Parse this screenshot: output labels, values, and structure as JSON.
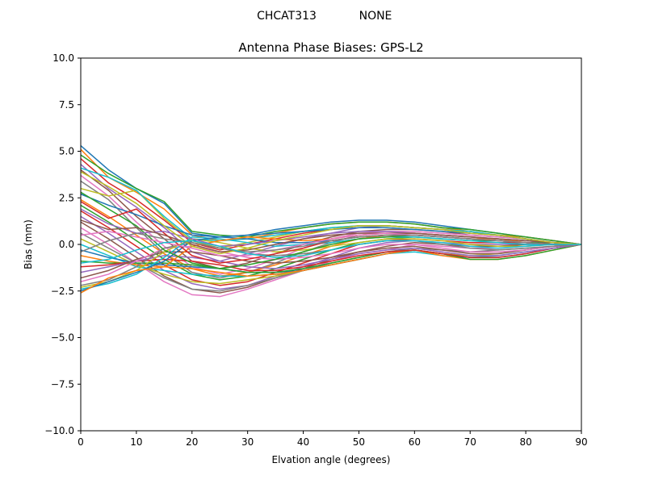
{
  "figure": {
    "suptitle_left": "CHCAT313",
    "suptitle_right": "NONE"
  },
  "chart_data": {
    "type": "line",
    "title": "Antenna Phase Biases: GPS-L2",
    "xlabel": "Elvation angle (degrees)",
    "ylabel": "Bias (mm)",
    "xlim": [
      0,
      90
    ],
    "ylim": [
      -10,
      10
    ],
    "xticks": [
      0,
      10,
      20,
      30,
      40,
      50,
      60,
      70,
      80,
      90
    ],
    "yticks": [
      -10.0,
      -7.5,
      -5.0,
      -2.5,
      0.0,
      2.5,
      5.0,
      7.5,
      10.0
    ],
    "xtick_labels": [
      "0",
      "10",
      "20",
      "30",
      "40",
      "50",
      "60",
      "70",
      "80",
      "90"
    ],
    "ytick_labels": [
      "−10.0",
      "−7.5",
      "−5.0",
      "−2.5",
      "0.0",
      "2.5",
      "5.0",
      "7.5",
      "10.0"
    ],
    "grid": false,
    "legend": "none",
    "x": [
      0,
      5,
      10,
      15,
      20,
      25,
      30,
      35,
      40,
      45,
      50,
      55,
      60,
      65,
      70,
      75,
      80,
      85,
      90
    ],
    "series": [
      {
        "color": "#1f77b4",
        "values": [
          5.3,
          4.0,
          3.0,
          2.2,
          0.6,
          0.4,
          0.5,
          0.8,
          1.0,
          1.2,
          1.3,
          1.3,
          1.2,
          1.0,
          0.8,
          0.6,
          0.4,
          0.2,
          0.0
        ]
      },
      {
        "color": "#ff7f0e",
        "values": [
          5.1,
          3.6,
          2.8,
          1.9,
          0.5,
          0.2,
          0.3,
          0.6,
          0.9,
          1.1,
          1.2,
          1.2,
          1.1,
          0.9,
          0.7,
          0.5,
          0.4,
          0.2,
          0.0
        ]
      },
      {
        "color": "#2ca02c",
        "values": [
          4.8,
          3.8,
          3.0,
          2.3,
          0.7,
          0.5,
          0.4,
          0.7,
          0.9,
          1.1,
          1.2,
          1.2,
          1.1,
          0.9,
          0.8,
          0.6,
          0.4,
          0.2,
          0.0
        ]
      },
      {
        "color": "#d62728",
        "values": [
          4.6,
          3.3,
          2.4,
          1.3,
          0.1,
          -0.3,
          0.0,
          0.3,
          0.6,
          0.8,
          1.0,
          1.0,
          0.9,
          0.8,
          0.6,
          0.5,
          0.3,
          0.1,
          0.0
        ]
      },
      {
        "color": "#9467bd",
        "values": [
          4.3,
          3.0,
          2.0,
          0.9,
          -0.4,
          -0.9,
          -0.5,
          -0.1,
          0.3,
          0.6,
          0.9,
          1.0,
          0.9,
          0.8,
          0.6,
          0.5,
          0.3,
          0.1,
          0.0
        ]
      },
      {
        "color": "#8c564b",
        "values": [
          4.0,
          2.9,
          1.5,
          0.3,
          -0.9,
          -1.3,
          -1.0,
          -0.5,
          0.0,
          0.4,
          0.7,
          0.8,
          0.8,
          0.7,
          0.5,
          0.4,
          0.3,
          0.1,
          0.0
        ]
      },
      {
        "color": "#e377c2",
        "values": [
          3.7,
          2.6,
          1.2,
          -0.1,
          -1.2,
          -1.6,
          -1.3,
          -0.8,
          -0.2,
          0.3,
          0.6,
          0.7,
          0.7,
          0.6,
          0.5,
          0.4,
          0.3,
          0.1,
          0.0
        ]
      },
      {
        "color": "#7f7f7f",
        "values": [
          3.4,
          2.4,
          0.9,
          -0.5,
          -1.5,
          -1.8,
          -1.5,
          -1.0,
          -0.4,
          0.1,
          0.5,
          0.6,
          0.6,
          0.5,
          0.4,
          0.3,
          0.2,
          0.1,
          0.0
        ]
      },
      {
        "color": "#bcbd22",
        "values": [
          3.0,
          2.6,
          2.9,
          1.4,
          0.2,
          -0.2,
          0.1,
          0.4,
          0.7,
          0.9,
          1.0,
          1.0,
          0.9,
          0.8,
          0.7,
          0.5,
          0.3,
          0.1,
          0.0
        ]
      },
      {
        "color": "#17becf",
        "values": [
          4.1,
          3.6,
          2.9,
          1.5,
          0.3,
          0.2,
          0.3,
          0.5,
          0.7,
          0.9,
          1.0,
          1.0,
          0.9,
          0.8,
          0.7,
          0.5,
          0.3,
          0.1,
          0.0
        ]
      },
      {
        "color": "#1f77b4",
        "values": [
          2.7,
          2.1,
          1.6,
          1.0,
          0.5,
          0.4,
          0.5,
          0.6,
          0.7,
          0.8,
          0.9,
          0.9,
          0.8,
          0.7,
          0.6,
          0.5,
          0.3,
          0.1,
          0.0
        ]
      },
      {
        "color": "#ff7f0e",
        "values": [
          2.4,
          1.5,
          0.5,
          -0.5,
          -1.3,
          -1.7,
          -1.5,
          -1.1,
          -0.6,
          -0.1,
          0.3,
          0.5,
          0.5,
          0.4,
          0.3,
          0.3,
          0.2,
          0.1,
          0.0
        ]
      },
      {
        "color": "#2ca02c",
        "values": [
          2.1,
          1.2,
          0.2,
          -0.8,
          -1.6,
          -1.9,
          -1.7,
          -1.3,
          -0.8,
          -0.3,
          0.1,
          0.3,
          0.4,
          0.3,
          0.2,
          0.2,
          0.1,
          0.1,
          0.0
        ]
      },
      {
        "color": "#d62728",
        "values": [
          1.8,
          0.9,
          -0.1,
          -1.1,
          -1.9,
          -2.2,
          -2.0,
          -1.5,
          -1.0,
          -0.5,
          0.0,
          0.2,
          0.3,
          0.2,
          0.1,
          0.1,
          0.1,
          0.0,
          0.0
        ]
      },
      {
        "color": "#9467bd",
        "values": [
          1.5,
          0.6,
          -0.4,
          -1.4,
          -2.1,
          -2.4,
          -2.2,
          -1.7,
          -1.2,
          -0.7,
          -0.2,
          0.1,
          0.2,
          0.1,
          0.0,
          0.0,
          0.0,
          0.0,
          0.0
        ]
      },
      {
        "color": "#8c564b",
        "values": [
          1.2,
          0.3,
          -0.7,
          -1.7,
          -2.4,
          -2.6,
          -2.3,
          -1.8,
          -1.3,
          -0.8,
          -0.4,
          -0.1,
          0.1,
          0.0,
          -0.1,
          -0.1,
          0.0,
          0.0,
          0.0
        ]
      },
      {
        "color": "#e377c2",
        "values": [
          0.9,
          0.0,
          -1.0,
          -2.0,
          -2.7,
          -2.8,
          -2.4,
          -1.9,
          -1.4,
          -0.9,
          -0.5,
          -0.3,
          0.0,
          -0.1,
          -0.2,
          -0.2,
          -0.1,
          0.0,
          0.0
        ]
      },
      {
        "color": "#7f7f7f",
        "values": [
          0.6,
          -0.2,
          -1.0,
          -1.8,
          -2.4,
          -2.5,
          -2.2,
          -1.8,
          -1.4,
          -1.0,
          -0.7,
          -0.4,
          -0.2,
          -0.3,
          -0.4,
          -0.3,
          -0.2,
          -0.1,
          0.0
        ]
      },
      {
        "color": "#bcbd22",
        "values": [
          0.3,
          -0.4,
          -1.1,
          -1.6,
          -2.0,
          -2.1,
          -1.9,
          -1.7,
          -1.4,
          -1.1,
          -0.8,
          -0.5,
          -0.3,
          -0.5,
          -0.6,
          -0.5,
          -0.3,
          -0.1,
          0.0
        ]
      },
      {
        "color": "#17becf",
        "values": [
          0.0,
          -0.6,
          -1.2,
          -1.4,
          -1.6,
          -1.7,
          -1.7,
          -1.6,
          -1.4,
          -1.1,
          -0.8,
          -0.5,
          -0.4,
          -0.6,
          -0.7,
          -0.6,
          -0.4,
          -0.2,
          0.0
        ]
      },
      {
        "color": "#1f77b4",
        "values": [
          -0.3,
          -0.7,
          -1.0,
          -1.1,
          -1.2,
          -1.3,
          -1.5,
          -1.5,
          -1.4,
          -1.1,
          -0.8,
          -0.5,
          -0.3,
          -0.5,
          -0.7,
          -0.7,
          -0.5,
          -0.2,
          0.0
        ]
      },
      {
        "color": "#ff7f0e",
        "values": [
          -0.6,
          -0.9,
          -1.1,
          -1.2,
          -1.3,
          -1.5,
          -1.7,
          -1.6,
          -1.4,
          -1.1,
          -0.8,
          -0.5,
          -0.3,
          -0.6,
          -0.8,
          -0.8,
          -0.6,
          -0.3,
          0.0
        ]
      },
      {
        "color": "#2ca02c",
        "values": [
          -0.9,
          -1.0,
          -1.0,
          -1.0,
          -1.1,
          -1.3,
          -1.5,
          -1.5,
          -1.3,
          -1.0,
          -0.7,
          -0.4,
          -0.3,
          -0.5,
          -0.8,
          -0.8,
          -0.6,
          -0.3,
          0.0
        ]
      },
      {
        "color": "#d62728",
        "values": [
          -1.2,
          -1.1,
          -0.9,
          -0.8,
          -0.9,
          -1.1,
          -1.4,
          -1.4,
          -1.2,
          -0.9,
          -0.6,
          -0.4,
          -0.3,
          -0.5,
          -0.7,
          -0.7,
          -0.5,
          -0.2,
          0.0
        ]
      },
      {
        "color": "#9467bd",
        "values": [
          -1.5,
          -1.2,
          -0.9,
          -0.6,
          -0.7,
          -0.9,
          -1.2,
          -1.3,
          -1.1,
          -0.8,
          -0.5,
          -0.3,
          -0.2,
          -0.4,
          -0.6,
          -0.6,
          -0.4,
          -0.2,
          0.0
        ]
      },
      {
        "color": "#8c564b",
        "values": [
          -1.8,
          -1.4,
          -0.8,
          -0.4,
          -0.4,
          -0.6,
          -0.9,
          -1.0,
          -0.9,
          -0.7,
          -0.4,
          -0.2,
          -0.1,
          -0.3,
          -0.5,
          -0.5,
          -0.3,
          -0.1,
          0.0
        ]
      },
      {
        "color": "#e377c2",
        "values": [
          -2.0,
          -1.6,
          -0.9,
          -0.2,
          -0.1,
          -0.4,
          -0.7,
          -0.8,
          -0.7,
          -0.5,
          -0.2,
          0.0,
          0.0,
          -0.2,
          -0.4,
          -0.4,
          -0.3,
          -0.1,
          0.0
        ]
      },
      {
        "color": "#7f7f7f",
        "values": [
          -2.2,
          -1.9,
          -1.2,
          -0.2,
          0.1,
          -0.2,
          -0.5,
          -0.6,
          -0.5,
          -0.3,
          0.0,
          0.2,
          0.2,
          0.0,
          -0.2,
          -0.3,
          -0.2,
          -0.1,
          0.0
        ]
      },
      {
        "color": "#bcbd22",
        "values": [
          -2.3,
          -2.0,
          -1.4,
          -0.4,
          0.3,
          0.1,
          -0.2,
          -0.4,
          -0.3,
          -0.1,
          0.1,
          0.3,
          0.3,
          0.2,
          0.0,
          -0.1,
          -0.1,
          0.0,
          0.0
        ]
      },
      {
        "color": "#17becf",
        "values": [
          -2.4,
          -2.1,
          -1.6,
          -0.7,
          0.4,
          0.3,
          0.1,
          -0.1,
          0.0,
          0.1,
          0.3,
          0.4,
          0.4,
          0.3,
          0.2,
          0.1,
          0.0,
          0.0,
          0.0
        ]
      },
      {
        "color": "#1f77b4",
        "values": [
          -2.5,
          -2.0,
          -1.5,
          -0.9,
          0.2,
          0.4,
          0.3,
          0.1,
          0.1,
          0.2,
          0.4,
          0.5,
          0.5,
          0.4,
          0.3,
          0.2,
          0.1,
          0.0,
          0.0
        ]
      },
      {
        "color": "#ff7f0e",
        "values": [
          -2.6,
          -1.8,
          -1.4,
          -1.2,
          -0.1,
          0.2,
          0.4,
          0.3,
          0.2,
          0.3,
          0.5,
          0.6,
          0.6,
          0.5,
          0.4,
          0.3,
          0.1,
          0.0,
          0.0
        ]
      },
      {
        "color": "#2ca02c",
        "values": [
          2.8,
          1.9,
          1.0,
          -0.3,
          -1.0,
          -1.3,
          -1.1,
          -0.8,
          -0.4,
          0.0,
          0.3,
          0.4,
          0.5,
          0.4,
          0.3,
          0.2,
          0.1,
          0.0,
          0.0
        ]
      },
      {
        "color": "#d62728",
        "values": [
          2.3,
          1.4,
          1.9,
          0.6,
          -0.6,
          -1.0,
          -0.8,
          -0.5,
          -0.2,
          0.2,
          0.4,
          0.5,
          0.5,
          0.4,
          0.3,
          0.2,
          0.1,
          0.0,
          0.0
        ]
      },
      {
        "color": "#9467bd",
        "values": [
          1.9,
          1.1,
          0.6,
          0.7,
          0.3,
          -0.1,
          0.0,
          0.2,
          0.4,
          0.6,
          0.7,
          0.7,
          0.6,
          0.5,
          0.4,
          0.3,
          0.2,
          0.1,
          0.0
        ]
      },
      {
        "color": "#8c564b",
        "values": [
          1.3,
          0.8,
          0.9,
          0.5,
          0.0,
          -0.4,
          -0.3,
          0.0,
          0.3,
          0.5,
          0.6,
          0.6,
          0.6,
          0.5,
          0.4,
          0.3,
          0.2,
          0.1,
          0.0
        ]
      },
      {
        "color": "#e377c2",
        "values": [
          0.5,
          0.7,
          0.4,
          0.1,
          -0.2,
          -0.6,
          -0.6,
          -0.3,
          0.0,
          0.3,
          0.5,
          0.6,
          0.5,
          0.4,
          0.3,
          0.2,
          0.1,
          0.0,
          0.0
        ]
      },
      {
        "color": "#7f7f7f",
        "values": [
          -0.4,
          0.2,
          0.6,
          0.3,
          0.1,
          -0.2,
          -0.4,
          -0.3,
          -0.1,
          0.2,
          0.4,
          0.5,
          0.5,
          0.4,
          0.3,
          0.2,
          0.1,
          0.0,
          0.0
        ]
      },
      {
        "color": "#bcbd22",
        "values": [
          3.9,
          3.1,
          2.2,
          1.0,
          -0.1,
          -0.5,
          -0.2,
          0.2,
          0.5,
          0.8,
          1.0,
          1.0,
          0.9,
          0.8,
          0.6,
          0.5,
          0.3,
          0.1,
          0.0
        ]
      },
      {
        "color": "#17becf",
        "values": [
          -1.0,
          -0.8,
          -0.3,
          0.1,
          0.2,
          -0.1,
          -0.5,
          -0.7,
          -0.6,
          -0.3,
          0.0,
          0.2,
          0.2,
          0.1,
          -0.1,
          -0.2,
          -0.1,
          0.0,
          0.0
        ]
      }
    ]
  }
}
